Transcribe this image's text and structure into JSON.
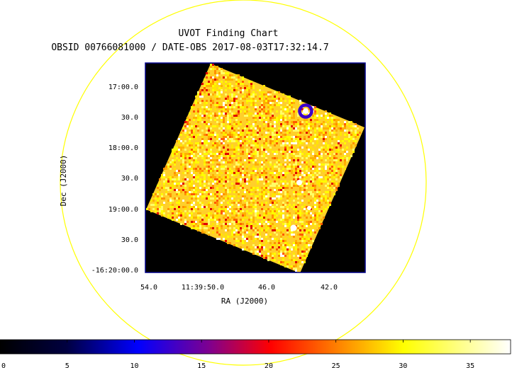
{
  "chart_data": {
    "type": "heatmap",
    "title": "UVOT Finding Chart",
    "subtitle": "OBSID 00766081000 / DATE-OBS 2017-08-03T17:32:14.7",
    "xlabel": "RA (J2000)",
    "ylabel": "Dec (J2000)",
    "x_ticks": [
      "54.0",
      "11:39:50.0",
      "46.0",
      "42.0"
    ],
    "y_ticks": [
      "17:00.0",
      "30.0",
      "18:00.0",
      "30.0",
      "19:00.0",
      "30.0",
      "-16:20:00.0"
    ],
    "colorbar": {
      "ticks": [
        "0",
        "5",
        "10",
        "15",
        "20",
        "25",
        "30",
        "35"
      ],
      "range": [
        0,
        38
      ],
      "colormap": [
        "#000000",
        "#0000ff",
        "#ff0000",
        "#ffff00",
        "#ffffff"
      ]
    },
    "field_of_view": {
      "shape": "rotated square",
      "rotation_deg": 25
    },
    "source_marker": {
      "shape": "circle",
      "color": "#3b00c8"
    },
    "outer_circle_color": "#ffff00",
    "background_color": "#000000",
    "frame_color": "#00008b"
  }
}
